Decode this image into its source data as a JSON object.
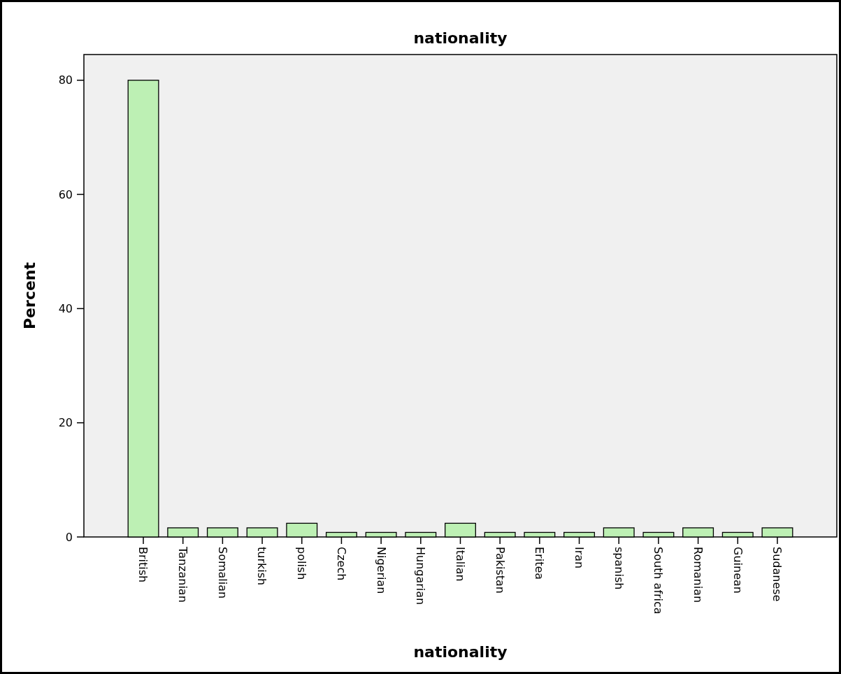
{
  "chart_data": {
    "type": "bar",
    "title": "nationality",
    "xlabel": "nationality",
    "ylabel": "Percent",
    "categories": [
      "British",
      "Tanzanian",
      "Somalian",
      "turkish",
      "polish",
      "Czech",
      "Nigerian",
      "Hungarian",
      "Italian",
      "Pakistan",
      "Eritea",
      "Iran",
      "spanish",
      "South africa",
      "Romanian",
      "Guinean",
      "Sudanese"
    ],
    "values": [
      80,
      1.6,
      1.6,
      1.6,
      2.4,
      0.8,
      0.8,
      0.8,
      2.4,
      0.8,
      0.8,
      0.8,
      1.6,
      0.8,
      1.6,
      0.8,
      1.6
    ],
    "color": "#bdf0b4",
    "ylim": [
      0,
      84.5
    ],
    "yticks": [
      0,
      20,
      40,
      60,
      80
    ],
    "grid": false
  }
}
